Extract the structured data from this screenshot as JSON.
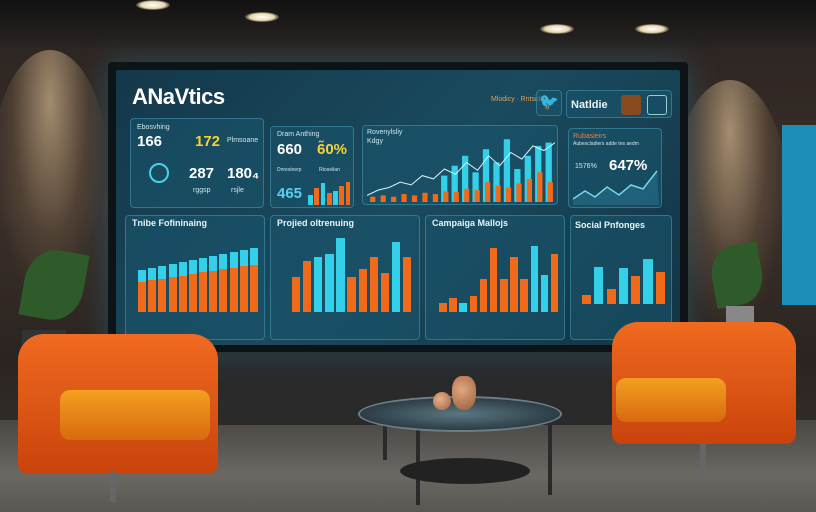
{
  "dashboard": {
    "title": "ANaVtics",
    "header_small_text": "Mlodicy ∙ Rntsidt",
    "user_name": "Natldie",
    "twitter_icon": "twitter-bird-icon",
    "kpi1": {
      "label": "Ebosvhing",
      "v1": "166",
      "v2": "172",
      "v2_label": "Plmsoane",
      "v3": "287",
      "v4": "180₄",
      "v3_label": "rggsp",
      "v4_label": "rsjle"
    },
    "kpi2": {
      "label": "Dram Anthing",
      "v1": "660",
      "v2": "6̃0%",
      "v3": "465",
      "small1": "Dnresinerp",
      "small2": "Rtoselian"
    },
    "chart_top": {
      "label": "Rovenylsliy",
      "sub": "Kdgy",
      "line": [
        10,
        18,
        22,
        30,
        26,
        40,
        35,
        50,
        42,
        60,
        48,
        70,
        55,
        75,
        65,
        85,
        78,
        90
      ],
      "cyan": [
        0,
        0,
        0,
        0,
        0,
        0,
        0,
        40,
        55,
        70,
        45,
        80,
        60,
        95,
        50,
        70,
        85,
        90
      ],
      "orange": [
        8,
        10,
        8,
        12,
        10,
        14,
        12,
        16,
        15,
        20,
        18,
        30,
        25,
        22,
        28,
        35,
        45,
        30
      ]
    },
    "kpi3": {
      "label": "Rubasieirs",
      "sub": "Aubescladiers adde tes aedm",
      "v1": "1576%",
      "v2": "647%"
    },
    "chart1": {
      "label": "Tnibe Fofininaing",
      "cyan": [
        15,
        16,
        17,
        17,
        18,
        19,
        19,
        20,
        20,
        21,
        22,
        22
      ],
      "orange": [
        40,
        42,
        44,
        46,
        48,
        50,
        52,
        54,
        56,
        58,
        60,
        62
      ]
    },
    "chart2": {
      "label": "Projied oltrenuing",
      "bars": [
        [
          "o",
          45
        ],
        [
          "o",
          65
        ],
        [
          "c",
          70
        ],
        [
          "c",
          75
        ],
        [
          "c",
          95
        ],
        [
          "o",
          45
        ],
        [
          "o",
          55
        ],
        [
          "o",
          70
        ],
        [
          "o",
          50
        ],
        [
          "c",
          90
        ],
        [
          "o",
          70
        ]
      ]
    },
    "chart3": {
      "label": "Campaiga Mallojs",
      "bars": [
        [
          "o",
          12
        ],
        [
          "o",
          18
        ],
        [
          "c",
          12
        ],
        [
          "o",
          20
        ],
        [
          "o",
          42
        ],
        [
          "o",
          82
        ],
        [
          "o",
          42
        ],
        [
          "o",
          70
        ],
        [
          "o",
          42
        ],
        [
          "c",
          85
        ],
        [
          "c",
          48
        ],
        [
          "o",
          75
        ]
      ]
    },
    "chart4": {
      "label": "Social Pnfonges",
      "bars": [
        [
          "o",
          15
        ],
        [
          "c",
          60
        ],
        [
          "o",
          25
        ],
        [
          "c",
          58
        ],
        [
          "o",
          45
        ],
        [
          "c",
          72
        ],
        [
          "o",
          52
        ]
      ]
    },
    "colors": {
      "cyan": "#34d0ea",
      "orange": "#f06a1a",
      "accent_yellow": "#f5d23a"
    }
  }
}
